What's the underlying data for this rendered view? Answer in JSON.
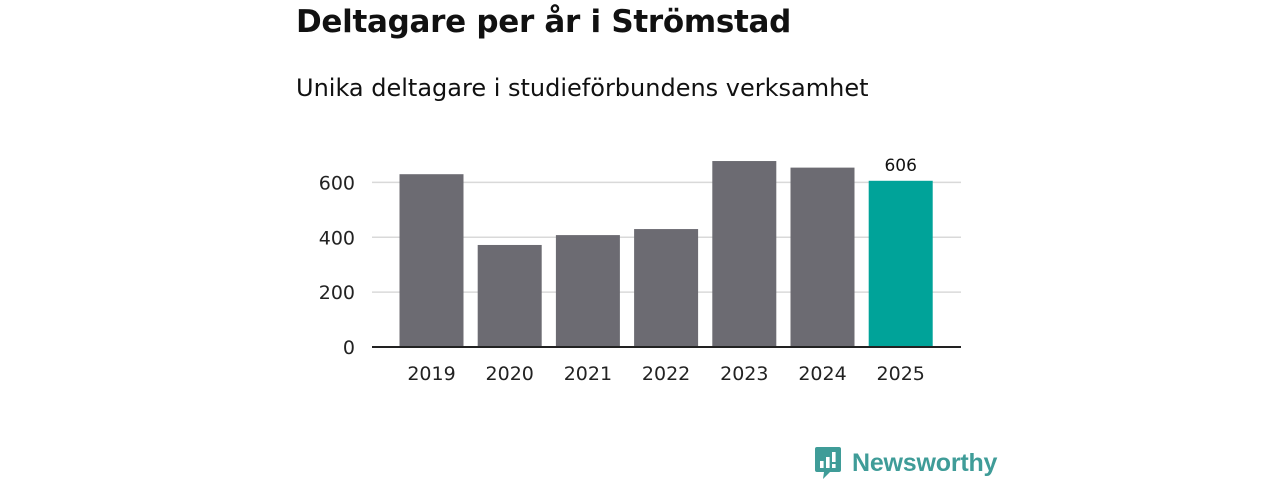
{
  "header": {
    "title": "Deltagare per år i Strömstad",
    "subtitle": "Unika deltagare i studieförbundens verksamhet"
  },
  "chart_data": {
    "type": "bar",
    "title": "Deltagare per år i Strömstad",
    "subtitle": "Unika deltagare i studieförbundens verksamhet",
    "categories": [
      "2019",
      "2020",
      "2021",
      "2022",
      "2023",
      "2024",
      "2025"
    ],
    "values": [
      630,
      372,
      408,
      430,
      678,
      654,
      606
    ],
    "highlight_index": 6,
    "data_labels": [
      {
        "index": 6,
        "text": "606"
      }
    ],
    "xlabel": "",
    "ylabel": "",
    "ylim": [
      0,
      700
    ],
    "yticks": [
      0,
      200,
      400,
      600
    ],
    "ytick_labels": [
      "0",
      "200",
      "400",
      "600"
    ],
    "grid": true,
    "colors": {
      "bar": "#6c6b72",
      "highlight": "#00a399",
      "grid": "#d9d9d9",
      "axis": "#222222",
      "text": "#222222"
    }
  },
  "brand": {
    "name": "Newsworthy",
    "logo_icon": "newsworthy-logo-icon",
    "color": "#3f9c98"
  }
}
